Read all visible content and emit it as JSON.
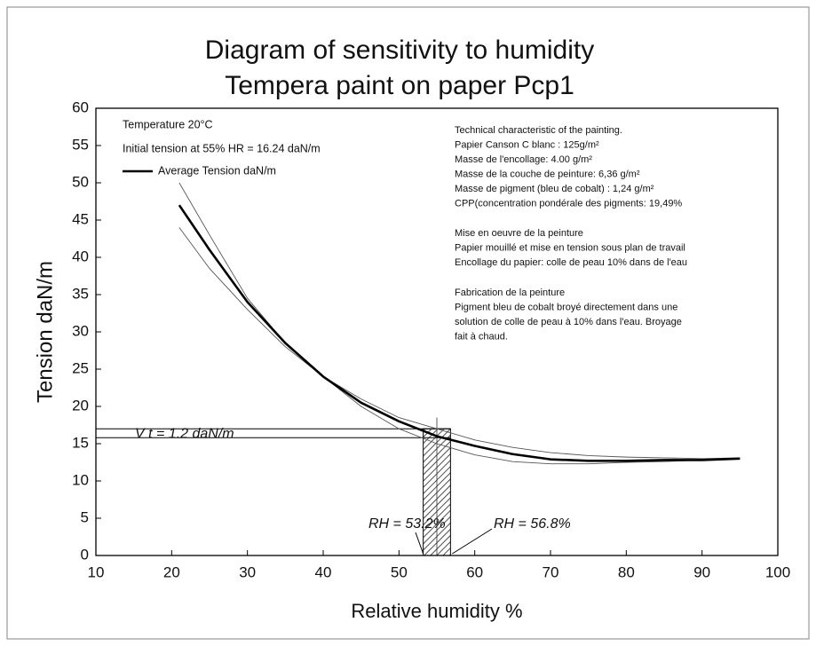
{
  "chart_data": {
    "type": "line",
    "title": "Diagram of sensitivity to humidity",
    "subtitle": "Tempera paint on paper Pcp1",
    "x_label": "Relative humidity %",
    "y_label": "Tension  daN/m",
    "xlim": [
      10,
      100
    ],
    "xticks": [
      10,
      20,
      30,
      40,
      50,
      60,
      70,
      80,
      90,
      100
    ],
    "ylim": [
      0,
      60
    ],
    "yticks": [
      0,
      5,
      10,
      15,
      20,
      25,
      30,
      35,
      40,
      45,
      50,
      55,
      60
    ],
    "grid": false,
    "legend": "upper left",
    "x": [
      21,
      25,
      30,
      35,
      40,
      45,
      50,
      55,
      60,
      65,
      70,
      75,
      80,
      85,
      90,
      95
    ],
    "series": [
      {
        "name": "Average Tension daN/m",
        "color": "#000000",
        "width": 2.6,
        "values": [
          47,
          41,
          34,
          28.5,
          24,
          20.5,
          18,
          16,
          14.7,
          13.6,
          12.9,
          12.7,
          12.7,
          12.8,
          12.8,
          13
        ]
      },
      {
        "color": "#555555",
        "width": 0.9,
        "values": [
          50,
          43,
          34.5,
          28.5,
          24,
          20,
          17,
          15,
          13.5,
          12.6,
          12.3,
          12.3,
          12.5,
          12.6,
          12.8,
          13
        ]
      },
      {
        "color": "#555555",
        "width": 0.9,
        "values": [
          44,
          38.5,
          33,
          28,
          24,
          21,
          18.5,
          17,
          15.5,
          14.5,
          13.8,
          13.4,
          13.2,
          13.1,
          13,
          13.1
        ]
      }
    ],
    "hlines": [
      17,
      15.8
    ],
    "hline_label": "V   t = 1.2 daN/m",
    "vline": {
      "x": 55,
      "top": 18.5
    },
    "band": {
      "x": [
        53.2,
        56.8
      ],
      "top": 17
    },
    "rh_labels": [
      "RH = 53.2%",
      "RH = 56.8%"
    ],
    "conditions": [
      "Temperature  20°C",
      "Initial tension at 55% HR = 16.24 daN/m"
    ],
    "notes": [
      [
        "Technical characteristic of the painting.",
        "Papier Canson C blanc : 125g/m²",
        "Masse de l'encollage: 4.00 g/m²",
        "Masse de la couche de peinture: 6,36 g/m²",
        "Masse de pigment (bleu de cobalt) : 1,24 g/m²",
        "CPP(concentration pondérale des pigments: 19,49%"
      ],
      [
        "Mise en oeuvre de la peinture",
        "Papier mouillé et mise en tension sous plan de travail",
        "Encollage du papier: colle de peau 10% dans de l'eau"
      ],
      [
        "Fabrication de la peinture",
        "Pigment bleu de cobalt  broyé directement dans une",
        "solution de colle de peau à 10% dans l'eau. Broyage",
        "fait à chaud."
      ]
    ]
  }
}
